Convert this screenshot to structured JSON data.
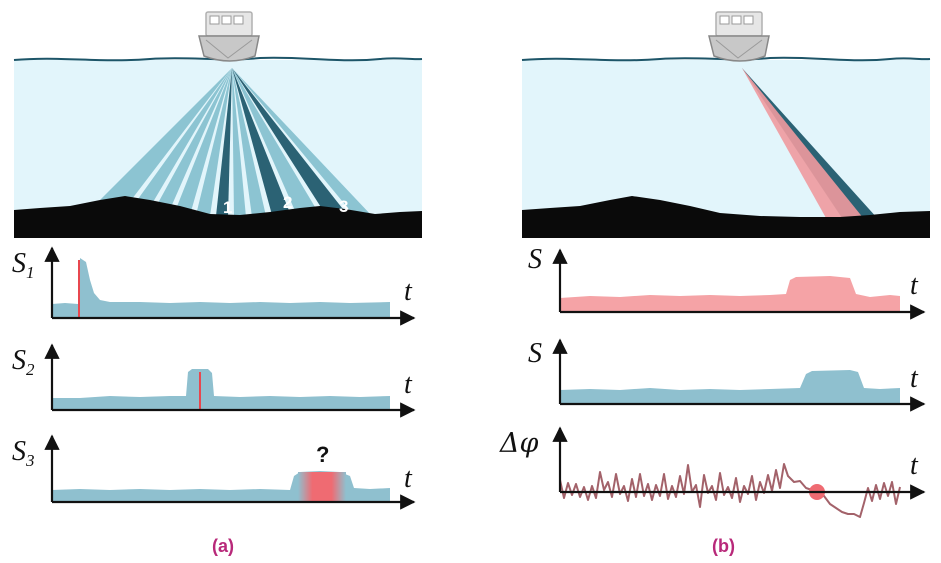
{
  "panels": {
    "a": {
      "caption": "(a)",
      "beam_numbers": [
        "1",
        "2",
        "3"
      ],
      "plots": [
        {
          "ylabel": "S",
          "subscript": "1",
          "xlabel": "t",
          "feature": "red line at early return"
        },
        {
          "ylabel": "S",
          "subscript": "2",
          "xlabel": "t",
          "feature": "red line at mid bump"
        },
        {
          "ylabel": "S",
          "subscript": "3",
          "xlabel": "t",
          "annotation": "?"
        }
      ]
    },
    "b": {
      "caption": "(b)",
      "plots": [
        {
          "ylabel": "S",
          "xlabel": "t",
          "color": "pink"
        },
        {
          "ylabel": "S",
          "xlabel": "t",
          "color": "blue"
        },
        {
          "ylabel": "Δφ",
          "xlabel": "t",
          "marker": "zero crossing dot"
        }
      ]
    }
  },
  "colors": {
    "water": "#e2f5fb",
    "water_line": "#1d5568",
    "seabed": "#0a0a0a",
    "beam_light": "#8cc4d2",
    "beam_dark": "#2b6274",
    "signal_blue": "#8fc0cf",
    "signal_pink": "#f5a3a6",
    "accent_red": "#e8474f",
    "phase_line": "#a3626a",
    "caption": "#b8297a"
  }
}
